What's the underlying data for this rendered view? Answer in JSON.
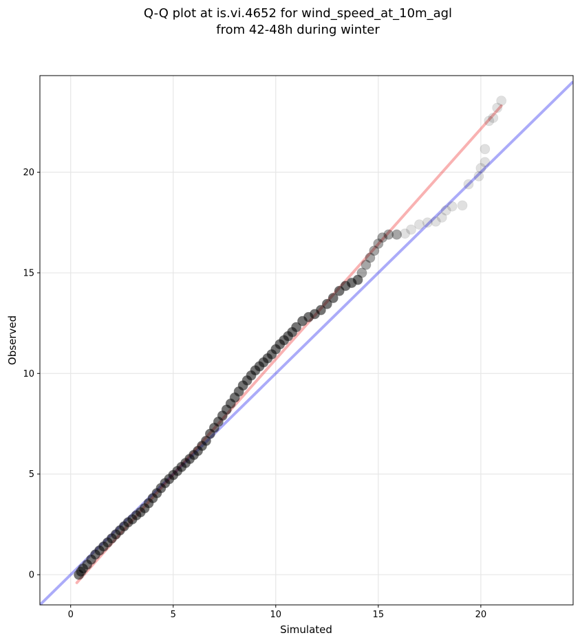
{
  "chart_data": {
    "type": "scatter",
    "title_line1": "Q-Q plot at is.vi.4652 for wind_speed_at_10m_agl",
    "title_line2": "from 42-48h during winter",
    "xlabel": "Simulated",
    "ylabel": "Observed",
    "xlim": [
      -1.5,
      24.5
    ],
    "ylim": [
      -1.5,
      24.8
    ],
    "xticks": [
      0,
      5,
      10,
      15,
      20
    ],
    "yticks": [
      0,
      5,
      10,
      15,
      20
    ],
    "grid": true,
    "colors": {
      "points": "#000000",
      "identity_line": "#0000ee",
      "fit_line": "#ee2222",
      "grid": "#e6e6e6"
    },
    "identity_line": {
      "x": [
        -1.5,
        24.5
      ],
      "y": [
        -1.5,
        24.5
      ]
    },
    "fit_line": {
      "x": [
        0.3,
        21.0
      ],
      "y": [
        -0.4,
        23.3
      ]
    },
    "series": [
      {
        "points": [
          [
            0.4,
            0.0
          ],
          [
            0.5,
            0.15
          ],
          [
            0.6,
            0.3
          ],
          [
            0.8,
            0.5
          ],
          [
            1.0,
            0.75
          ],
          [
            1.2,
            1.0
          ],
          [
            1.4,
            1.2
          ],
          [
            1.6,
            1.4
          ],
          [
            1.8,
            1.6
          ],
          [
            2.0,
            1.8
          ],
          [
            2.2,
            2.0
          ],
          [
            2.4,
            2.2
          ],
          [
            2.6,
            2.4
          ],
          [
            2.8,
            2.6
          ],
          [
            3.0,
            2.75
          ],
          [
            3.2,
            2.95
          ],
          [
            3.4,
            3.1
          ],
          [
            3.6,
            3.3
          ],
          [
            3.8,
            3.55
          ],
          [
            4.0,
            3.8
          ],
          [
            4.2,
            4.05
          ],
          [
            4.4,
            4.3
          ],
          [
            4.6,
            4.55
          ],
          [
            4.8,
            4.75
          ],
          [
            5.0,
            4.95
          ],
          [
            5.2,
            5.15
          ],
          [
            5.4,
            5.35
          ],
          [
            5.6,
            5.55
          ],
          [
            5.8,
            5.75
          ],
          [
            6.0,
            5.95
          ],
          [
            6.2,
            6.15
          ],
          [
            6.4,
            6.4
          ],
          [
            6.6,
            6.65
          ],
          [
            6.8,
            7.0
          ],
          [
            7.0,
            7.3
          ],
          [
            7.2,
            7.6
          ],
          [
            7.4,
            7.9
          ],
          [
            7.6,
            8.2
          ],
          [
            7.8,
            8.5
          ],
          [
            8.0,
            8.8
          ],
          [
            8.2,
            9.1
          ],
          [
            8.4,
            9.4
          ],
          [
            8.6,
            9.65
          ],
          [
            8.8,
            9.9
          ],
          [
            9.0,
            10.15
          ],
          [
            9.2,
            10.35
          ],
          [
            9.4,
            10.55
          ],
          [
            9.6,
            10.75
          ],
          [
            9.8,
            10.95
          ],
          [
            10.0,
            11.2
          ],
          [
            10.2,
            11.45
          ],
          [
            10.4,
            11.65
          ],
          [
            10.6,
            11.85
          ],
          [
            10.8,
            12.05
          ],
          [
            11.0,
            12.3
          ],
          [
            11.3,
            12.6
          ],
          [
            11.6,
            12.8
          ],
          [
            11.9,
            12.95
          ],
          [
            12.2,
            13.15
          ],
          [
            12.5,
            13.45
          ],
          [
            12.8,
            13.75
          ],
          [
            13.1,
            14.1
          ],
          [
            13.4,
            14.35
          ],
          [
            13.7,
            14.5
          ],
          [
            14.0,
            14.65
          ],
          [
            14.2,
            15.0
          ],
          [
            14.4,
            15.4
          ],
          [
            14.6,
            15.75
          ],
          [
            14.8,
            16.1
          ],
          [
            15.0,
            16.45
          ],
          [
            15.2,
            16.75
          ],
          [
            15.5,
            16.9
          ],
          [
            15.9,
            16.9
          ],
          [
            16.3,
            16.95
          ],
          [
            16.6,
            17.15
          ],
          [
            17.0,
            17.4
          ],
          [
            17.4,
            17.5
          ],
          [
            17.8,
            17.55
          ],
          [
            18.1,
            17.75
          ],
          [
            18.3,
            18.1
          ],
          [
            18.6,
            18.3
          ],
          [
            19.1,
            18.35
          ],
          [
            19.4,
            19.4
          ],
          [
            19.9,
            19.8
          ],
          [
            20.0,
            20.2
          ],
          [
            20.2,
            20.5
          ],
          [
            20.2,
            21.15
          ],
          [
            20.4,
            22.55
          ],
          [
            20.6,
            22.7
          ],
          [
            20.8,
            23.2
          ],
          [
            21.0,
            23.55
          ]
        ]
      }
    ]
  }
}
